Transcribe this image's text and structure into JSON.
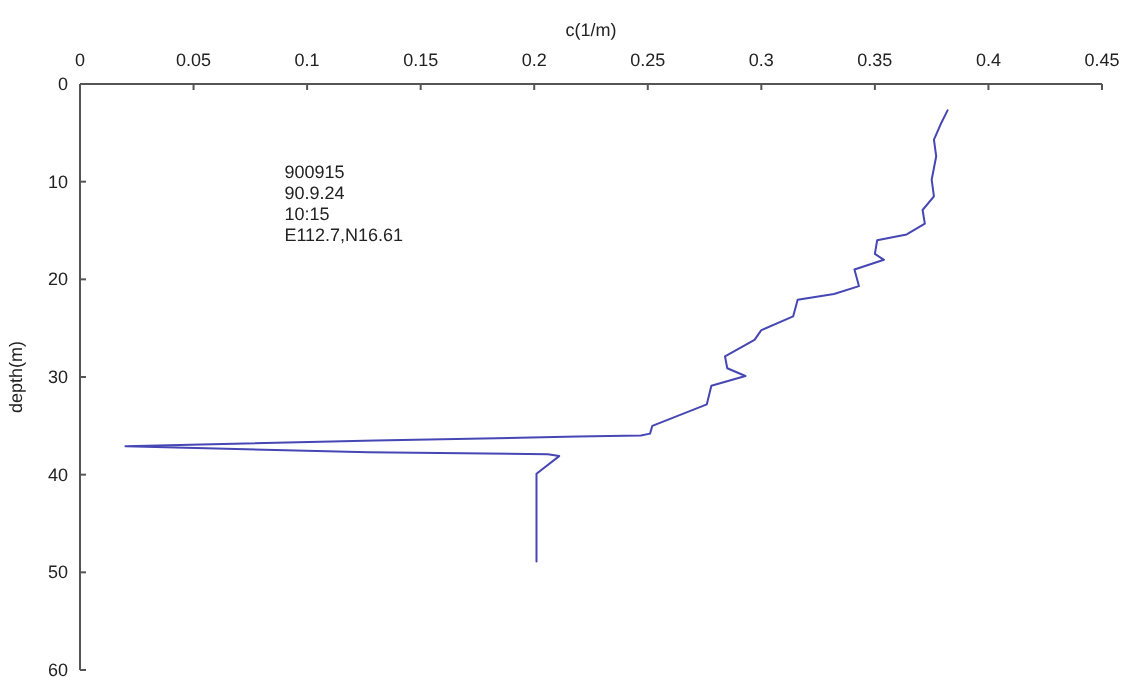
{
  "chart_data": {
    "type": "line",
    "xlabel": "c(1/m)",
    "ylabel": "depth(m)",
    "annotations": [
      "900915",
      "90.9.24",
      "10:15",
      "E112.7,N16.61"
    ],
    "xlim": [
      0,
      0.45
    ],
    "xticks": [
      0,
      0.05,
      0.1,
      0.15,
      0.2,
      0.25,
      0.3,
      0.35,
      0.4,
      0.45
    ],
    "ylim": [
      60,
      0
    ],
    "yticks": [
      0,
      10,
      20,
      30,
      40,
      50,
      60
    ],
    "grid": false,
    "marker": "none",
    "line_style": "solid",
    "series": [
      {
        "color": "#4646b4",
        "x": [
          0.382,
          0.379,
          0.376,
          0.377,
          0.375,
          0.376,
          0.371,
          0.372,
          0.364,
          0.351,
          0.35,
          0.354,
          0.341,
          0.343,
          0.332,
          0.316,
          0.314,
          0.3,
          0.297,
          0.284,
          0.285,
          0.293,
          0.278,
          0.276,
          0.252,
          0.251,
          0.247,
          0.219,
          0.13,
          0.02,
          0.127,
          0.206,
          0.211,
          0.201,
          0.201,
          0.201
        ],
        "values": [
          2.7,
          4.1,
          5.7,
          7.4,
          9.8,
          11.5,
          12.9,
          14.3,
          15.4,
          16.0,
          17.4,
          18.0,
          19.0,
          20.7,
          21.5,
          22.1,
          23.8,
          25.2,
          26.2,
          27.9,
          29.1,
          29.9,
          30.9,
          32.8,
          35.0,
          35.8,
          36.0,
          36.1,
          36.5,
          37.1,
          37.7,
          37.9,
          38.1,
          39.9,
          40.5,
          48.9
        ]
      }
    ]
  }
}
